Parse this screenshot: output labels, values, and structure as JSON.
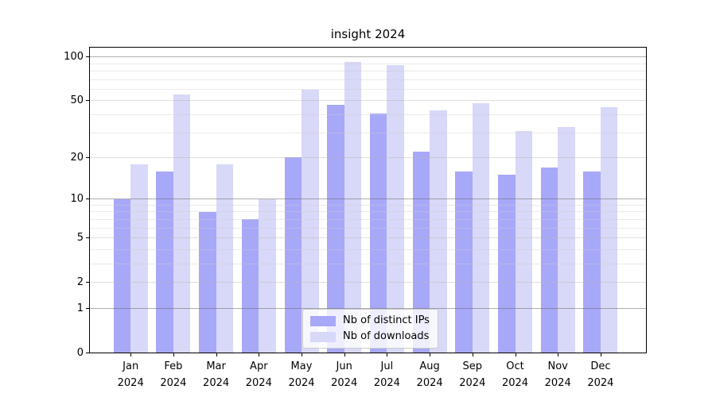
{
  "chart_data": {
    "type": "bar",
    "title": "insight 2024",
    "categories": [
      "Jan 2024",
      "Feb 2024",
      "Mar 2024",
      "Apr 2024",
      "May 2024",
      "Jun 2024",
      "Jul 2024",
      "Aug 2024",
      "Sep 2024",
      "Oct 2024",
      "Nov 2024",
      "Dec 2024"
    ],
    "series": [
      {
        "name": "Nb of distinct IPs",
        "color": "#a8a8f8",
        "values": [
          10,
          16,
          8,
          7,
          20,
          47,
          41,
          22,
          16,
          15,
          17,
          16
        ]
      },
      {
        "name": "Nb of downloads",
        "color": "#d8d8f8",
        "values": [
          18,
          55,
          18,
          10,
          60,
          92,
          88,
          43,
          48,
          31,
          33,
          45
        ]
      }
    ],
    "xlabel": "",
    "ylabel": "",
    "yscale": "log1p",
    "ylim": [
      0,
      116
    ],
    "yticks": [
      100,
      50,
      20,
      10,
      5,
      2,
      1,
      0
    ],
    "ytick_groups": {
      "decade": [
        1,
        10,
        100
      ],
      "mid": [
        2,
        5,
        20,
        50
      ],
      "minor": [
        3,
        4,
        6,
        7,
        8,
        9,
        30,
        40,
        60,
        70,
        80,
        90
      ]
    },
    "grid": "horizontal",
    "legend_position": "lower center",
    "colors": {
      "background": "#ffffff",
      "spine": "#000000",
      "grid_major": "#9a9a9a",
      "grid_minor": "#e3e3e3",
      "legend_border": "#cccccc"
    }
  }
}
